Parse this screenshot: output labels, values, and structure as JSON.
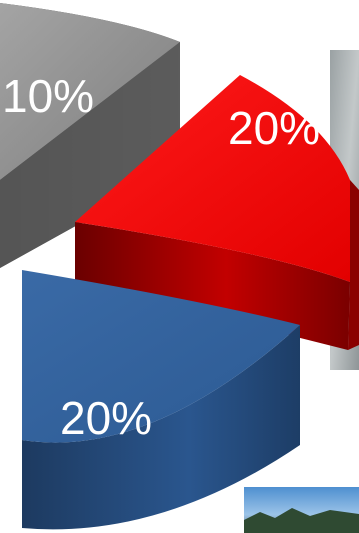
{
  "chart_data": {
    "type": "pie",
    "style": "3d-exploded",
    "title": "",
    "slices": [
      {
        "label": "10%",
        "value": 10,
        "color": "#8a8a8a"
      },
      {
        "label": "20%",
        "value": 20,
        "color": "#ee0000"
      },
      {
        "label": "20%",
        "value": 20,
        "color": "#2f5f9a"
      }
    ],
    "background_photo": true
  }
}
